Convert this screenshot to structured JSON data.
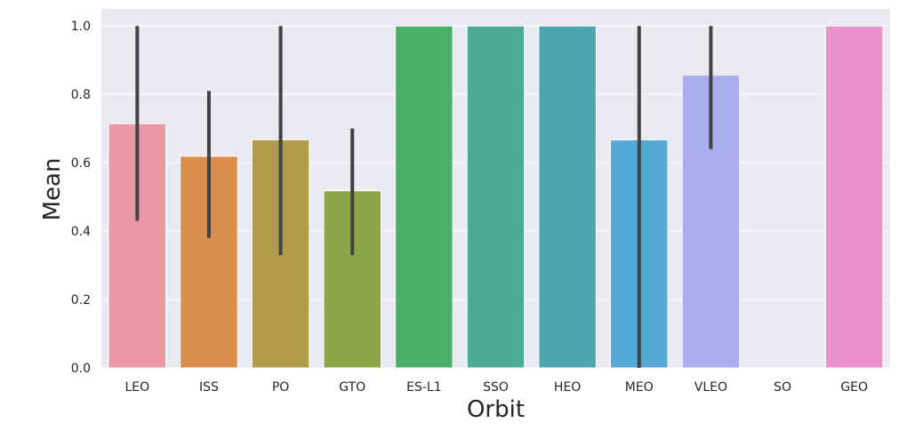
{
  "chart_data": {
    "type": "bar",
    "xlabel": "Orbit",
    "ylabel": "Mean",
    "ylim": [
      0,
      1.05
    ],
    "yticks": [
      0.0,
      0.2,
      0.4,
      0.6,
      0.8,
      1.0
    ],
    "ytick_labels": [
      "0.0",
      "0.2",
      "0.4",
      "0.6",
      "0.8",
      "1.0"
    ],
    "grid": true,
    "categories": [
      "LEO",
      "ISS",
      "PO",
      "GTO",
      "ES-L1",
      "SSO",
      "HEO",
      "MEO",
      "VLEO",
      "SO",
      "GEO"
    ],
    "values": [
      0.714,
      0.619,
      0.667,
      0.518,
      1.0,
      1.0,
      1.0,
      0.667,
      0.857,
      0.0,
      1.0
    ],
    "ci_low": [
      0.43,
      0.38,
      0.33,
      0.33,
      null,
      null,
      null,
      0.0,
      0.64,
      null,
      null
    ],
    "ci_high": [
      1.0,
      0.81,
      1.0,
      0.7,
      null,
      null,
      null,
      1.0,
      1.0,
      null,
      null
    ],
    "colors": [
      "#ea96a3",
      "#d98e4b",
      "#b09b4a",
      "#8ea64a",
      "#4caf67",
      "#4cac96",
      "#4ea7b0",
      "#55a9d6",
      "#a9aeec",
      "#d699e6",
      "#e98fcc"
    ],
    "background": "#eaeaf2",
    "errorbar_color": "#424242"
  }
}
